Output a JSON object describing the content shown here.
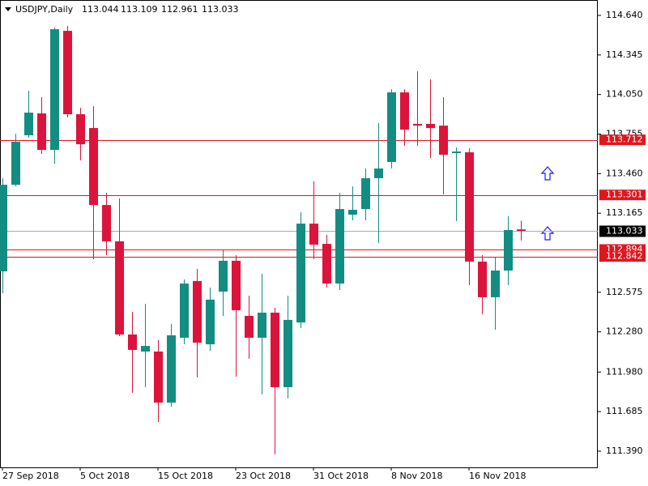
{
  "chart_data": {
    "type": "candlestick",
    "symbol": "USDJPY,Daily",
    "categories": [
      "27 Sep 2018",
      null,
      null,
      null,
      null,
      null,
      "5 Oct 2018",
      null,
      null,
      null,
      null,
      null,
      "15 Oct 2018",
      null,
      null,
      null,
      null,
      null,
      "23 Oct 2018",
      null,
      null,
      null,
      null,
      null,
      "31 Oct 2018",
      null,
      null,
      null,
      null,
      null,
      "8 Nov 2018",
      null,
      null,
      null,
      null,
      null,
      "16 Nov 2018",
      null,
      null,
      null,
      null
    ],
    "open": [
      112.731,
      113.377,
      113.746,
      113.909,
      113.637,
      114.525,
      113.903,
      113.8,
      113.226,
      112.955,
      112.26,
      112.133,
      112.133,
      111.752,
      112.236,
      112.659,
      112.187,
      112.58,
      112.81,
      112.399,
      112.236,
      112.423,
      111.867,
      112.35,
      113.087,
      112.936,
      112.64,
      113.154,
      113.196,
      113.426,
      113.547,
      114.066,
      113.831,
      113.831,
      113.818,
      113.613,
      113.619,
      112.804,
      112.538,
      112.737,
      113.044
    ],
    "high": [
      113.426,
      113.758,
      114.078,
      114.03,
      114.549,
      114.561,
      113.951,
      113.963,
      113.317,
      113.275,
      112.429,
      112.489,
      112.218,
      112.338,
      112.671,
      112.749,
      112.61,
      112.888,
      112.852,
      112.55,
      112.713,
      112.459,
      112.55,
      113.172,
      113.402,
      113.003,
      113.317,
      113.365,
      113.498,
      113.837,
      114.09,
      114.09,
      114.223,
      114.163,
      114.03,
      113.655,
      113.649,
      112.852,
      112.834,
      113.142,
      113.109
    ],
    "low": [
      112.568,
      113.365,
      113.728,
      113.607,
      113.534,
      113.879,
      113.559,
      112.822,
      112.852,
      112.248,
      111.825,
      111.867,
      111.607,
      111.722,
      112.187,
      111.94,
      112.139,
      112.399,
      111.946,
      112.079,
      111.813,
      111.366,
      111.783,
      112.308,
      112.822,
      112.61,
      112.592,
      113.112,
      113.112,
      112.942,
      113.498,
      113.667,
      113.667,
      113.577,
      113.305,
      113.106,
      112.628,
      112.411,
      112.296,
      112.628,
      112.961
    ],
    "close": [
      113.377,
      113.698,
      113.915,
      113.637,
      114.537,
      113.903,
      113.679,
      113.226,
      112.955,
      112.26,
      112.145,
      112.175,
      111.752,
      112.254,
      112.64,
      112.199,
      112.52,
      112.81,
      112.441,
      112.236,
      112.423,
      111.867,
      112.369,
      113.087,
      112.93,
      112.64,
      113.196,
      113.19,
      113.426,
      113.498,
      114.066,
      113.788,
      113.818,
      113.8,
      113.601,
      113.625,
      112.804,
      112.538,
      112.737,
      113.039,
      113.033
    ],
    "up_color": "#138d82",
    "down_color": "#dc143c",
    "ylim": [
      111.269,
      114.755
    ],
    "yticks": [
      {
        "value": 114.64,
        "label": "114.640"
      },
      114.345,
      {
        "value": 114.05,
        "label": "114.050"
      },
      113.755,
      {
        "value": 113.46,
        "label": "113.460"
      },
      113.165,
      112.575,
      {
        "value": 112.28,
        "label": "112.280"
      },
      {
        "value": 111.98,
        "label": "111.980"
      },
      111.685,
      {
        "value": 111.39,
        "label": "111.390"
      }
    ],
    "levels": [
      113.712,
      113.301,
      112.894,
      112.842
    ],
    "level_color": "#e0161e",
    "price_line_color": "#9ab0b0"
  }
}
